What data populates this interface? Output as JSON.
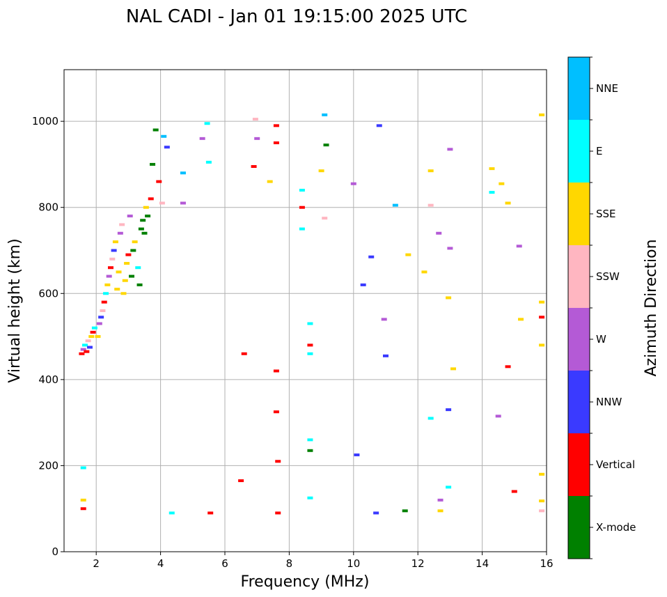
{
  "chart_data": {
    "type": "scatter",
    "title": "NAL CADI - Jan 01 19:15:00 2025 UTC",
    "xlabel": "Frequency (MHz)",
    "ylabel": "Virtual height (km)",
    "xlim": [
      1,
      16
    ],
    "ylim": [
      0,
      1120
    ],
    "xticks": [
      2,
      4,
      6,
      8,
      10,
      12,
      14,
      16
    ],
    "yticks": [
      0,
      200,
      400,
      600,
      800,
      1000
    ],
    "grid": true,
    "colorbar": {
      "label": "Azimuth Direction",
      "categories": [
        {
          "name": "X-mode",
          "color": "#008000"
        },
        {
          "name": "Vertical",
          "color": "#ff0000"
        },
        {
          "name": "NNW",
          "color": "#3a3aff"
        },
        {
          "name": "W",
          "color": "#b45ad6"
        },
        {
          "name": "SSW",
          "color": "#ffb6c1"
        },
        {
          "name": "SSE",
          "color": "#ffd700"
        },
        {
          "name": "E",
          "color": "#00ffff"
        },
        {
          "name": "NNE",
          "color": "#00bfff"
        }
      ]
    },
    "points": [
      {
        "f": 1.55,
        "h": 460,
        "c": "Vertical"
      },
      {
        "f": 1.6,
        "h": 470,
        "c": "W"
      },
      {
        "f": 1.65,
        "h": 480,
        "c": "E"
      },
      {
        "f": 1.7,
        "h": 465,
        "c": "Vertical"
      },
      {
        "f": 1.75,
        "h": 490,
        "c": "SSW"
      },
      {
        "f": 1.8,
        "h": 475,
        "c": "NNW"
      },
      {
        "f": 1.85,
        "h": 500,
        "c": "SSE"
      },
      {
        "f": 1.9,
        "h": 510,
        "c": "Vertical"
      },
      {
        "f": 1.95,
        "h": 520,
        "c": "E"
      },
      {
        "f": 2.05,
        "h": 500,
        "c": "SSE"
      },
      {
        "f": 2.1,
        "h": 530,
        "c": "W"
      },
      {
        "f": 2.15,
        "h": 545,
        "c": "NNW"
      },
      {
        "f": 2.2,
        "h": 560,
        "c": "SSW"
      },
      {
        "f": 2.25,
        "h": 580,
        "c": "Vertical"
      },
      {
        "f": 2.3,
        "h": 600,
        "c": "E"
      },
      {
        "f": 2.35,
        "h": 620,
        "c": "SSE"
      },
      {
        "f": 2.4,
        "h": 640,
        "c": "W"
      },
      {
        "f": 2.45,
        "h": 660,
        "c": "Vertical"
      },
      {
        "f": 2.5,
        "h": 680,
        "c": "SSW"
      },
      {
        "f": 2.55,
        "h": 700,
        "c": "NNW"
      },
      {
        "f": 2.6,
        "h": 720,
        "c": "SSE"
      },
      {
        "f": 2.65,
        "h": 610,
        "c": "SSE"
      },
      {
        "f": 2.7,
        "h": 650,
        "c": "SSE"
      },
      {
        "f": 2.75,
        "h": 740,
        "c": "W"
      },
      {
        "f": 2.8,
        "h": 760,
        "c": "SSW"
      },
      {
        "f": 2.85,
        "h": 600,
        "c": "SSE"
      },
      {
        "f": 2.9,
        "h": 630,
        "c": "SSE"
      },
      {
        "f": 2.95,
        "h": 670,
        "c": "SSE"
      },
      {
        "f": 3.0,
        "h": 690,
        "c": "Vertical"
      },
      {
        "f": 3.05,
        "h": 780,
        "c": "W"
      },
      {
        "f": 3.1,
        "h": 640,
        "c": "X-mode"
      },
      {
        "f": 3.15,
        "h": 700,
        "c": "X-mode"
      },
      {
        "f": 3.2,
        "h": 720,
        "c": "SSE"
      },
      {
        "f": 3.3,
        "h": 660,
        "c": "E"
      },
      {
        "f": 3.35,
        "h": 620,
        "c": "X-mode"
      },
      {
        "f": 3.4,
        "h": 750,
        "c": "X-mode"
      },
      {
        "f": 3.45,
        "h": 770,
        "c": "X-mode"
      },
      {
        "f": 3.5,
        "h": 740,
        "c": "X-mode"
      },
      {
        "f": 3.55,
        "h": 800,
        "c": "SSE"
      },
      {
        "f": 3.6,
        "h": 780,
        "c": "X-mode"
      },
      {
        "f": 3.7,
        "h": 820,
        "c": "Vertical"
      },
      {
        "f": 3.75,
        "h": 900,
        "c": "X-mode"
      },
      {
        "f": 3.85,
        "h": 980,
        "c": "X-mode"
      },
      {
        "f": 3.95,
        "h": 860,
        "c": "Vertical"
      },
      {
        "f": 4.05,
        "h": 810,
        "c": "SSW"
      },
      {
        "f": 4.1,
        "h": 965,
        "c": "NNE"
      },
      {
        "f": 4.2,
        "h": 940,
        "c": "NNW"
      },
      {
        "f": 4.7,
        "h": 880,
        "c": "NNE"
      },
      {
        "f": 4.7,
        "h": 810,
        "c": "W"
      },
      {
        "f": 5.3,
        "h": 960,
        "c": "W"
      },
      {
        "f": 5.45,
        "h": 995,
        "c": "E"
      },
      {
        "f": 5.5,
        "h": 905,
        "c": "E"
      },
      {
        "f": 1.6,
        "h": 120,
        "c": "SSE"
      },
      {
        "f": 1.6,
        "h": 100,
        "c": "Vertical"
      },
      {
        "f": 1.6,
        "h": 195,
        "c": "E"
      },
      {
        "f": 4.35,
        "h": 90,
        "c": "E"
      },
      {
        "f": 5.55,
        "h": 90,
        "c": "Vertical"
      },
      {
        "f": 6.5,
        "h": 165,
        "c": "Vertical"
      },
      {
        "f": 6.6,
        "h": 460,
        "c": "Vertical"
      },
      {
        "f": 6.9,
        "h": 895,
        "c": "Vertical"
      },
      {
        "f": 6.95,
        "h": 1005,
        "c": "SSW"
      },
      {
        "f": 7.0,
        "h": 960,
        "c": "W"
      },
      {
        "f": 7.4,
        "h": 860,
        "c": "SSE"
      },
      {
        "f": 7.6,
        "h": 990,
        "c": "Vertical"
      },
      {
        "f": 7.6,
        "h": 950,
        "c": "Vertical"
      },
      {
        "f": 7.6,
        "h": 420,
        "c": "Vertical"
      },
      {
        "f": 7.6,
        "h": 325,
        "c": "Vertical"
      },
      {
        "f": 7.65,
        "h": 210,
        "c": "Vertical"
      },
      {
        "f": 7.65,
        "h": 90,
        "c": "Vertical"
      },
      {
        "f": 8.4,
        "h": 840,
        "c": "E"
      },
      {
        "f": 8.4,
        "h": 800,
        "c": "Vertical"
      },
      {
        "f": 8.4,
        "h": 750,
        "c": "E"
      },
      {
        "f": 8.65,
        "h": 530,
        "c": "E"
      },
      {
        "f": 8.65,
        "h": 480,
        "c": "Vertical"
      },
      {
        "f": 8.65,
        "h": 460,
        "c": "E"
      },
      {
        "f": 8.65,
        "h": 260,
        "c": "E"
      },
      {
        "f": 8.65,
        "h": 235,
        "c": "X-mode"
      },
      {
        "f": 8.65,
        "h": 125,
        "c": "E"
      },
      {
        "f": 9.0,
        "h": 885,
        "c": "SSE"
      },
      {
        "f": 9.1,
        "h": 1015,
        "c": "NNE"
      },
      {
        "f": 9.15,
        "h": 945,
        "c": "X-mode"
      },
      {
        "f": 9.1,
        "h": 775,
        "c": "SSW"
      },
      {
        "f": 10.3,
        "h": 620,
        "c": "NNW"
      },
      {
        "f": 10.55,
        "h": 685,
        "c": "NNW"
      },
      {
        "f": 10.8,
        "h": 990,
        "c": "NNW"
      },
      {
        "f": 11.0,
        "h": 455,
        "c": "NNW"
      },
      {
        "f": 11.3,
        "h": 805,
        "c": "NNE"
      },
      {
        "f": 11.7,
        "h": 690,
        "c": "SSE"
      },
      {
        "f": 12.4,
        "h": 885,
        "c": "SSE"
      },
      {
        "f": 12.4,
        "h": 805,
        "c": "SSW"
      },
      {
        "f": 12.4,
        "h": 310,
        "c": "E"
      },
      {
        "f": 12.65,
        "h": 740,
        "c": "W"
      },
      {
        "f": 12.95,
        "h": 590,
        "c": "SSE"
      },
      {
        "f": 12.95,
        "h": 330,
        "c": "NNW"
      },
      {
        "f": 13.0,
        "h": 935,
        "c": "W"
      },
      {
        "f": 12.95,
        "h": 150,
        "c": "E"
      },
      {
        "f": 14.3,
        "h": 890,
        "c": "SSE"
      },
      {
        "f": 14.3,
        "h": 835,
        "c": "E"
      },
      {
        "f": 14.6,
        "h": 855,
        "c": "SSE"
      },
      {
        "f": 14.8,
        "h": 810,
        "c": "SSE"
      },
      {
        "f": 14.5,
        "h": 315,
        "c": "W"
      },
      {
        "f": 14.8,
        "h": 430,
        "c": "Vertical"
      },
      {
        "f": 15.0,
        "h": 140,
        "c": "Vertical"
      },
      {
        "f": 15.15,
        "h": 710,
        "c": "W"
      },
      {
        "f": 15.2,
        "h": 540,
        "c": "SSE"
      },
      {
        "f": 15.85,
        "h": 1015,
        "c": "SSE"
      },
      {
        "f": 15.85,
        "h": 580,
        "c": "SSE"
      },
      {
        "f": 15.85,
        "h": 545,
        "c": "Vertical"
      },
      {
        "f": 15.85,
        "h": 480,
        "c": "SSE"
      },
      {
        "f": 15.85,
        "h": 180,
        "c": "SSE"
      },
      {
        "f": 15.85,
        "h": 118,
        "c": "SSE"
      },
      {
        "f": 15.85,
        "h": 95,
        "c": "SSW"
      },
      {
        "f": 13.0,
        "h": 705,
        "c": "W"
      },
      {
        "f": 12.2,
        "h": 650,
        "c": "SSE"
      },
      {
        "f": 13.1,
        "h": 425,
        "c": "SSE"
      },
      {
        "f": 12.7,
        "h": 120,
        "c": "W"
      },
      {
        "f": 12.7,
        "h": 95,
        "c": "SSE"
      },
      {
        "f": 10.0,
        "h": 855,
        "c": "W"
      },
      {
        "f": 10.1,
        "h": 225,
        "c": "NNW"
      },
      {
        "f": 10.7,
        "h": 90,
        "c": "NNW"
      },
      {
        "f": 10.95,
        "h": 540,
        "c": "W"
      },
      {
        "f": 11.6,
        "h": 95,
        "c": "X-mode"
      }
    ]
  }
}
